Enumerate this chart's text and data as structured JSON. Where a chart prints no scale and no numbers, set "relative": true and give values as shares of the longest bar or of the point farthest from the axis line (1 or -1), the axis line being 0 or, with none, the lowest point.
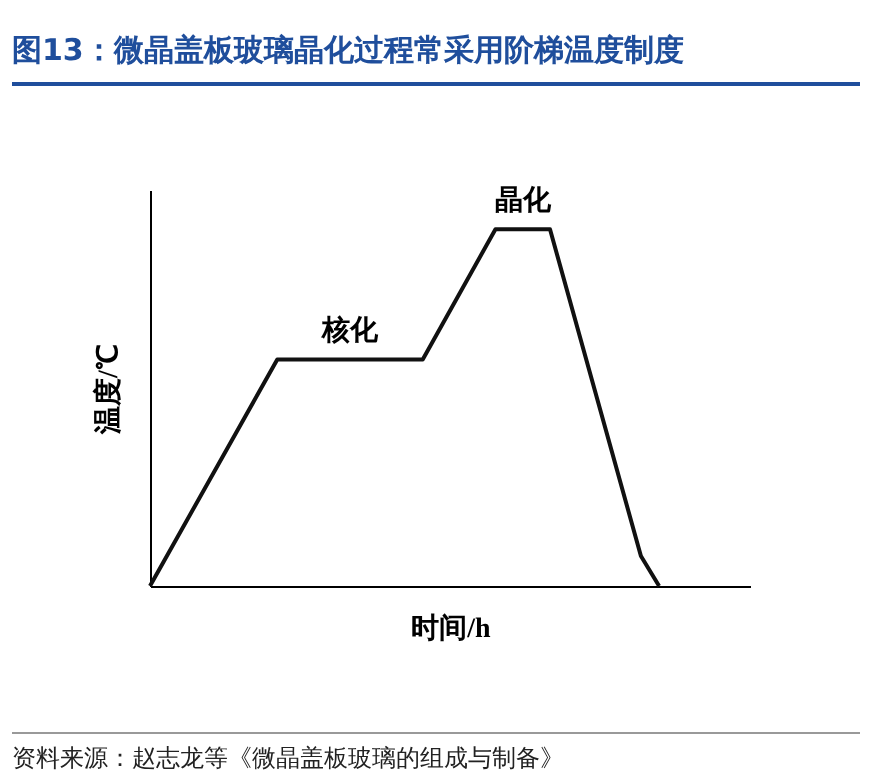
{
  "chart_data": {
    "type": "line",
    "title": "图13：微晶盖板玻璃晶化过程常采用阶梯温度制度",
    "xlabel": "时间/h",
    "ylabel": "温度/℃",
    "relative": true,
    "categories": [
      null,
      null,
      null,
      null,
      null,
      null,
      null,
      null,
      null,
      null,
      null,
      null,
      null,
      null,
      null,
      null,
      null,
      null,
      null,
      null,
      null,
      null,
      null,
      null,
      null,
      null,
      null,
      null,
      null,
      null,
      null,
      null,
      null,
      null
    ],
    "series": [
      {
        "color": "#111111",
        "values": [
          0,
          null,
          null,
          null,
          null,
          null,
          null,
          0.635,
          null,
          null,
          null,
          null,
          null,
          null,
          null,
          0.635,
          null,
          null,
          null,
          1,
          null,
          null,
          1,
          null,
          null,
          null,
          null,
          0.084,
          0,
          null,
          null,
          null,
          null,
          null
        ]
      }
    ],
    "grid": false,
    "marker": "none",
    "line_style": "solid",
    "annotations": [
      "核化",
      "晶化",
      "资料来源：赵志龙等《微晶盖板玻璃的组成与制备》"
    ]
  }
}
